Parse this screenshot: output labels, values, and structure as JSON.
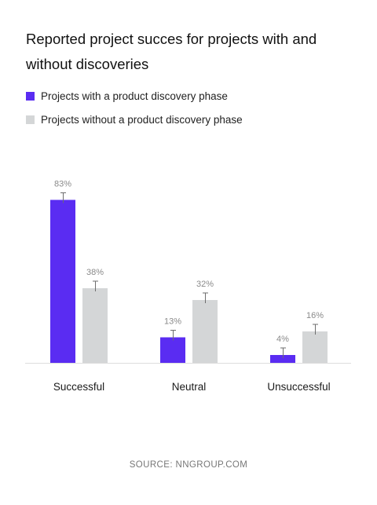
{
  "colors": {
    "with": "#5a2cf2",
    "without": "#d4d6d7",
    "axis": "#dddddd",
    "error": "#6e6e6e",
    "label": "#8a8a8a"
  },
  "chart_data": {
    "type": "bar",
    "title": "Reported project succes for projects with and without discoveries",
    "categories": [
      "Successful",
      "Neutral",
      "Unsuccessful"
    ],
    "series": [
      {
        "name": "Projects with a product discovery phase",
        "values": [
          83,
          13,
          4
        ],
        "labels": [
          "83%",
          "13%",
          "4%"
        ]
      },
      {
        "name": "Projects without a product discovery phase",
        "values": [
          38,
          32,
          16
        ],
        "labels": [
          "38%",
          "32%",
          "16%"
        ]
      }
    ],
    "ylim": [
      0,
      100
    ],
    "grid": false,
    "legend": "top-left",
    "error_bars": true
  },
  "source": "SOURCE: NNGROUP.COM"
}
